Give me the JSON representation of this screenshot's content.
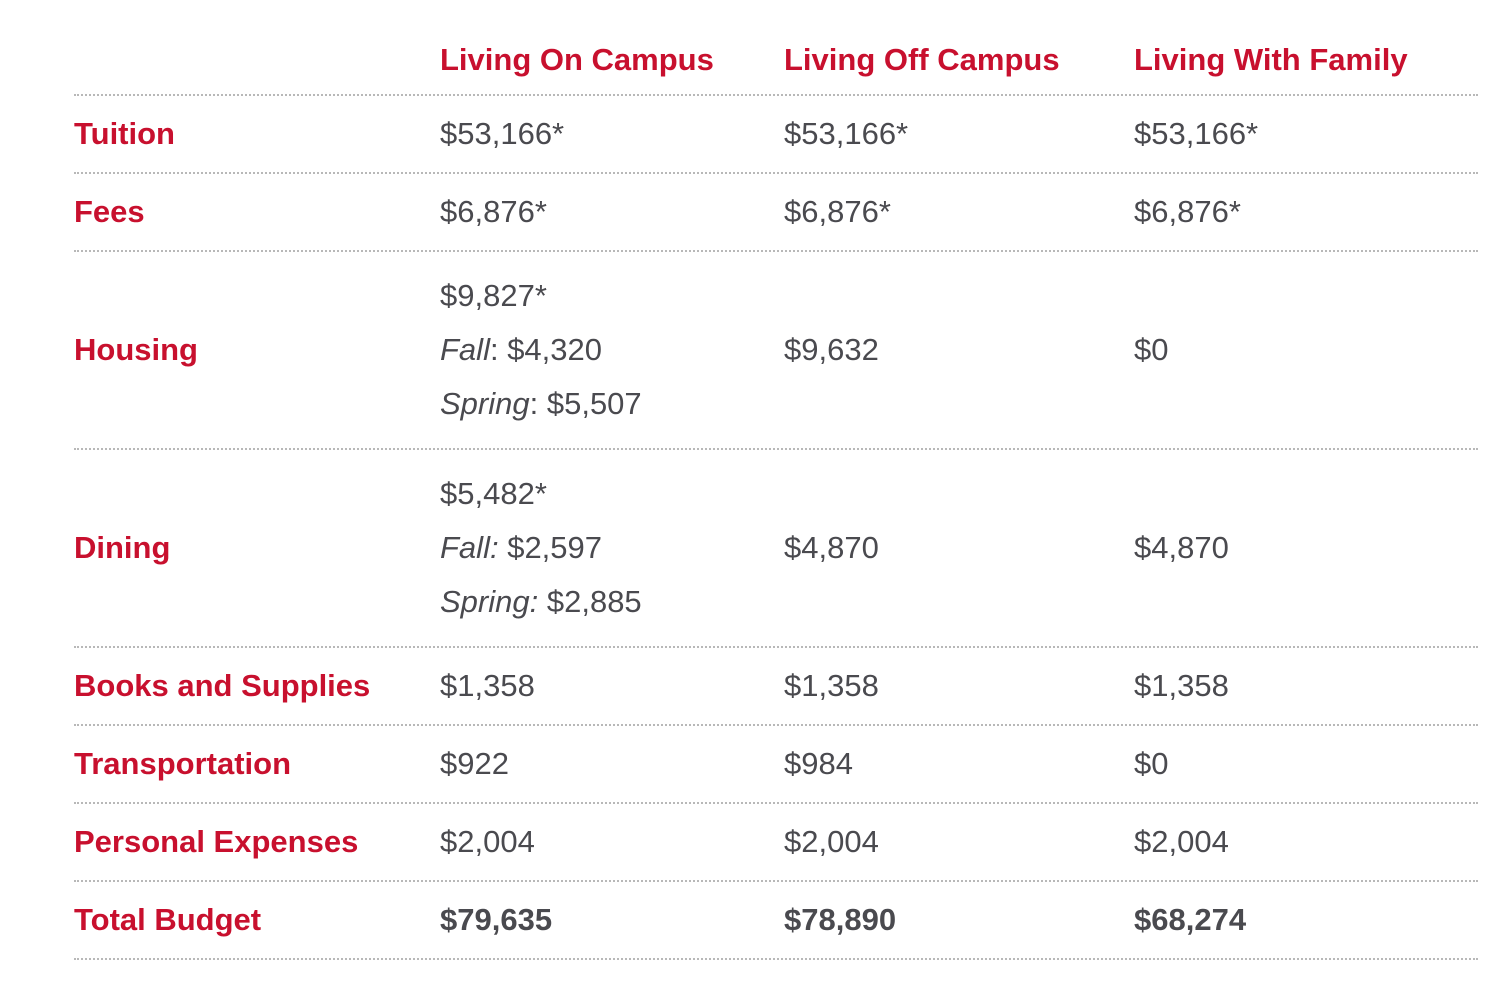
{
  "columns": [
    "Living On Campus",
    "Living Off Campus",
    "Living With Family"
  ],
  "rows": [
    {
      "label": "Tuition",
      "on_campus": "$53,166*",
      "off_campus": "$53,166*",
      "with_family": "$53,166*"
    },
    {
      "label": "Fees",
      "on_campus": "$6,876*",
      "off_campus": "$6,876*",
      "with_family": "$6,876*"
    },
    {
      "label": "Housing",
      "on_campus_total": "$9,827*",
      "on_campus_fall_label": "Fall",
      "on_campus_fall_sep": ": ",
      "on_campus_fall_value": "$4,320",
      "on_campus_spring_label": "Spring",
      "on_campus_spring_sep": ": ",
      "on_campus_spring_value": "$5,507",
      "off_campus": "$9,632",
      "with_family": "$0"
    },
    {
      "label": "Dining",
      "on_campus_total": "$5,482*",
      "on_campus_fall_label": "Fall:",
      "on_campus_fall_sep": " ",
      "on_campus_fall_value": "$2,597",
      "on_campus_spring_label": "Spring:",
      "on_campus_spring_sep": " ",
      "on_campus_spring_value": "$2,885",
      "off_campus": "$4,870",
      "with_family": "$4,870"
    },
    {
      "label": "Books and Supplies",
      "on_campus": "$1,358",
      "off_campus": "$1,358",
      "with_family": "$1,358"
    },
    {
      "label": "Transportation",
      "on_campus": "$922",
      "off_campus": "$984",
      "with_family": "$0"
    },
    {
      "label": "Personal Expenses",
      "on_campus": "$2,004",
      "off_campus": "$2,004",
      "with_family": "$2,004"
    },
    {
      "label": "Total Budget",
      "on_campus": "$79,635",
      "off_campus": "$78,890",
      "with_family": "$68,274"
    }
  ],
  "colors": {
    "accent": "#c8102e",
    "text": "#4a4a4f",
    "divider": "#b8b8b8"
  }
}
